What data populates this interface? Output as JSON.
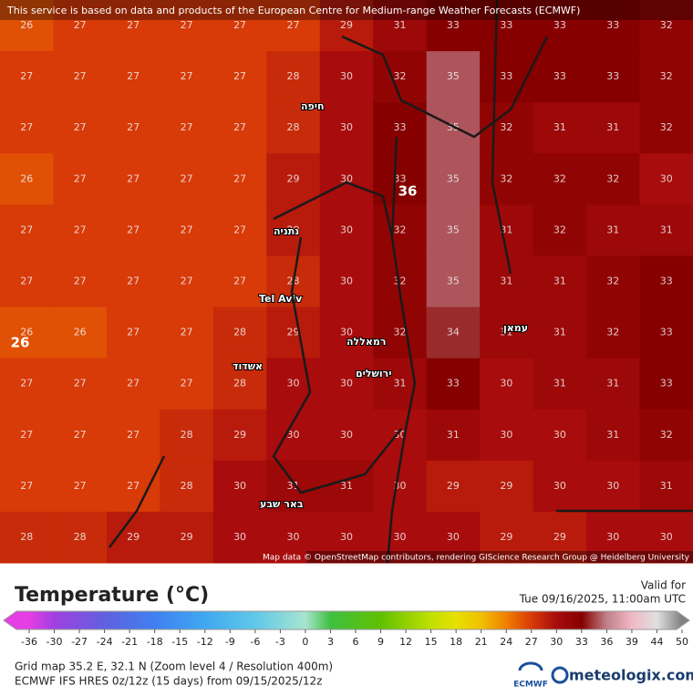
{
  "header": {
    "attribution": "This service is based on data and products of the European Centre for Medium-range Weather Forecasts (ECMWF)",
    "map_credit": "Map data © OpenStreetMap contributors, rendering GIScience Research Group @ Heidelberg University"
  },
  "map": {
    "grid": [
      [
        26,
        27,
        27,
        27,
        27,
        27,
        29,
        31,
        33,
        33,
        33,
        33,
        32
      ],
      [
        27,
        27,
        27,
        27,
        27,
        28,
        30,
        32,
        35,
        33,
        33,
        33,
        32
      ],
      [
        27,
        27,
        27,
        27,
        27,
        28,
        30,
        33,
        35,
        32,
        31,
        31,
        32
      ],
      [
        26,
        27,
        27,
        27,
        27,
        29,
        30,
        33,
        35,
        32,
        32,
        32,
        30
      ],
      [
        27,
        27,
        27,
        27,
        27,
        29,
        30,
        32,
        35,
        31,
        32,
        31,
        31
      ],
      [
        27,
        27,
        27,
        27,
        27,
        28,
        30,
        32,
        35,
        31,
        31,
        32,
        33
      ],
      [
        26,
        26,
        27,
        27,
        28,
        29,
        30,
        32,
        34,
        31,
        31,
        32,
        33
      ],
      [
        27,
        27,
        27,
        27,
        28,
        30,
        30,
        31,
        33,
        30,
        31,
        31,
        33
      ],
      [
        27,
        27,
        27,
        28,
        29,
        30,
        30,
        30,
        31,
        30,
        30,
        31,
        32
      ],
      [
        27,
        27,
        27,
        28,
        30,
        31,
        31,
        30,
        29,
        29,
        30,
        30,
        31
      ],
      [
        28,
        28,
        29,
        29,
        30,
        30,
        30,
        30,
        30,
        29,
        29,
        30,
        30
      ]
    ],
    "max_marker": 36,
    "min_marker": 26,
    "places": [
      "Tel Aviv",
      "חיפה",
      "ירושלים",
      "אשדוד",
      "באר שבע",
      "עמאן",
      "נתניה",
      "רמאללה"
    ]
  },
  "legend": {
    "title": "Temperature (°C)",
    "ticks": [
      -36,
      -30,
      -27,
      -24,
      -21,
      -18,
      -15,
      -12,
      -9,
      -6,
      -3,
      0,
      3,
      6,
      9,
      12,
      15,
      18,
      21,
      24,
      27,
      30,
      33,
      36,
      39,
      44,
      50
    ],
    "colorscale": [
      [
        -36,
        "#e43ee4"
      ],
      [
        -30,
        "#a040e0"
      ],
      [
        -24,
        "#6060e0"
      ],
      [
        -18,
        "#4080f0"
      ],
      [
        -12,
        "#40a8f0"
      ],
      [
        -6,
        "#60c8e8"
      ],
      [
        0,
        "#a8e4d0"
      ],
      [
        3,
        "#40c040"
      ],
      [
        9,
        "#60c000"
      ],
      [
        15,
        "#c0e000"
      ],
      [
        18,
        "#e8e000"
      ],
      [
        21,
        "#f0c000"
      ],
      [
        24,
        "#f08000"
      ],
      [
        27,
        "#d83a08"
      ],
      [
        30,
        "#a80c0c"
      ],
      [
        33,
        "#860000"
      ],
      [
        36,
        "#c08088"
      ],
      [
        39,
        "#f0b8c4"
      ],
      [
        44,
        "#e0e0e0"
      ],
      [
        50,
        "#808080"
      ]
    ]
  },
  "valid": {
    "label": "Valid for",
    "time": "Tue 09/16/2025, 11:00am UTC"
  },
  "footer": {
    "grid_info": "Grid map 35.2 E, 32.1 N (Zoom level 4 / Resolution 400m)",
    "model_info": "ECMWF IFS HRES 0z/12z (15 days) from 09/15/2025/12z",
    "ecmwf_logo": "ECMWF",
    "brand": "meteologix.com"
  }
}
